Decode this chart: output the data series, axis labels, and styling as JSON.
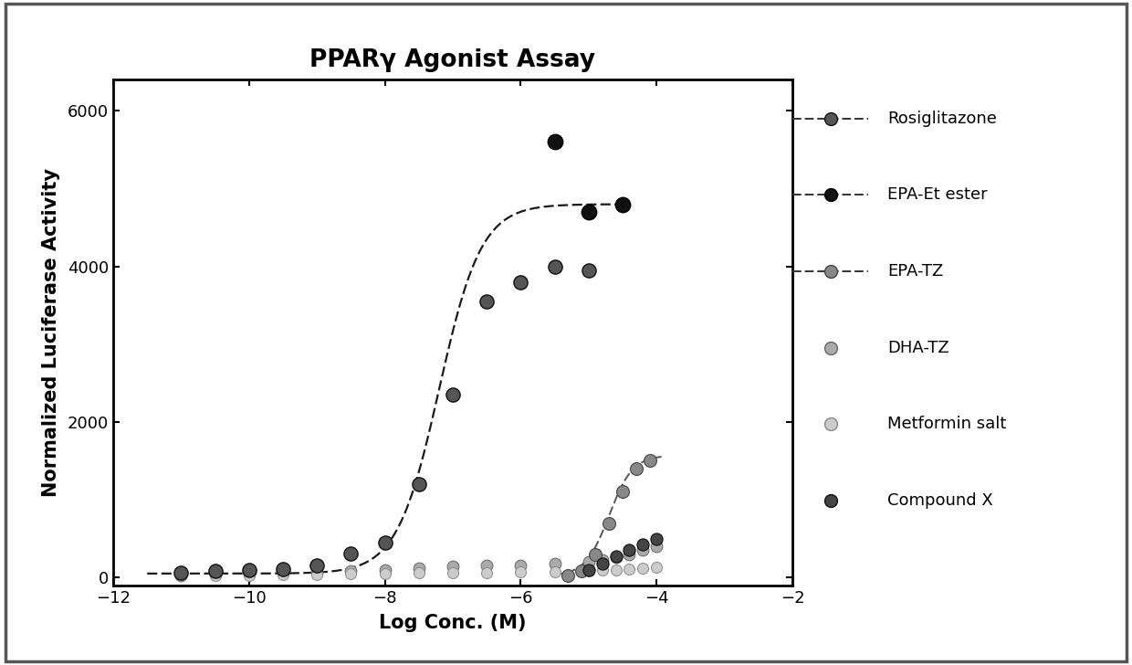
{
  "title": "PPARγ Agonist Assay",
  "xlabel": "Log Conc. (M)",
  "ylabel": "Normalized Luciferase Activity",
  "xlim": [
    -12,
    -2
  ],
  "ylim": [
    -100,
    6400
  ],
  "xticks": [
    -12,
    -10,
    -8,
    -6,
    -4,
    -2
  ],
  "yticks": [
    0,
    2000,
    4000,
    6000
  ],
  "background_color": "#ffffff",
  "rosiglitazone": {
    "x": [
      -11.0,
      -10.5,
      -10.0,
      -9.5,
      -9.0,
      -8.5,
      -8.0,
      -7.5,
      -7.0,
      -6.5,
      -6.0,
      -5.5,
      -5.0
    ],
    "y": [
      60,
      80,
      90,
      110,
      150,
      310,
      450,
      1200,
      2350,
      3550,
      3800,
      4000,
      3950
    ],
    "ec50": -7.2,
    "emax": 4750,
    "hill": 1.4
  },
  "epa_et_ester": {
    "x": [
      -5.5,
      -5.0,
      -4.5
    ],
    "y": [
      5600,
      4700,
      4800
    ]
  },
  "epa_tz": {
    "x": [
      -5.3,
      -5.1,
      -4.9,
      -4.7,
      -4.5,
      -4.3,
      -4.1
    ],
    "y": [
      30,
      80,
      300,
      700,
      1100,
      1400,
      1500
    ],
    "ec50": -4.7,
    "emax": 1550,
    "hill": 2.5
  },
  "dha_tz": {
    "x": [
      -11.0,
      -10.5,
      -10.0,
      -9.5,
      -9.0,
      -8.5,
      -8.0,
      -7.5,
      -7.0,
      -6.5,
      -6.0,
      -5.5,
      -5.0,
      -4.8,
      -4.6,
      -4.4,
      -4.2,
      -4.0
    ],
    "y": [
      30,
      40,
      50,
      55,
      65,
      80,
      100,
      120,
      140,
      150,
      160,
      180,
      200,
      230,
      260,
      300,
      350,
      400
    ]
  },
  "metformin_salt": {
    "x": [
      -11.0,
      -10.5,
      -10.0,
      -9.5,
      -9.0,
      -8.5,
      -8.0,
      -7.5,
      -7.0,
      -6.5,
      -6.0,
      -5.5,
      -5.0,
      -4.8,
      -4.6,
      -4.4,
      -4.2,
      -4.0
    ],
    "y": [
      20,
      25,
      30,
      35,
      40,
      45,
      50,
      55,
      60,
      65,
      70,
      75,
      80,
      90,
      100,
      110,
      120,
      130
    ]
  },
  "compound_x": {
    "x": [
      -5.0,
      -4.8,
      -4.6,
      -4.4,
      -4.2,
      -4.0
    ],
    "y": [
      100,
      180,
      270,
      350,
      430,
      500
    ]
  }
}
